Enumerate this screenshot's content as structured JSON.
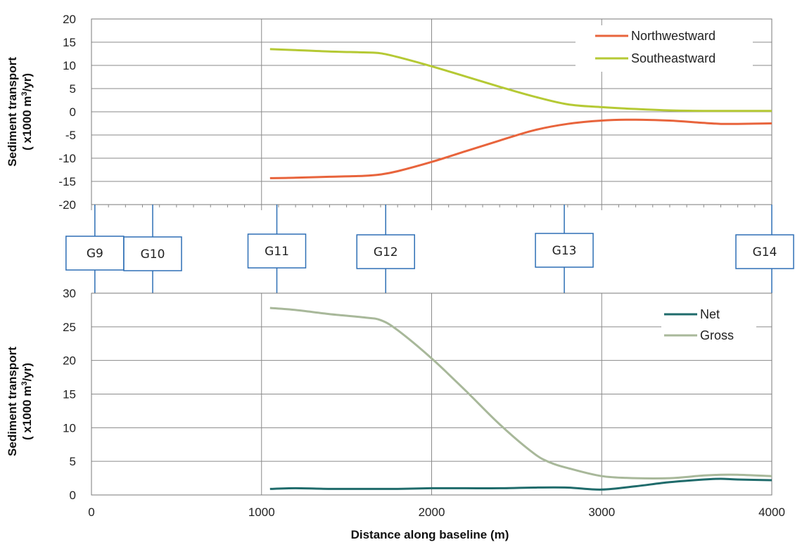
{
  "chart_data": [
    {
      "type": "line",
      "ylabel_line1": "Sediment transport",
      "ylabel_line2": "( x1000 m",
      "ylabel_sup": "3",
      "ylabel_end": "/yr)",
      "xlim": [
        0,
        4000
      ],
      "ylim": [
        -20,
        20
      ],
      "yticks": [
        -20,
        -15,
        -10,
        -5,
        0,
        5,
        10,
        15,
        20
      ],
      "x_gridlines": [
        1000,
        2000,
        3000
      ],
      "grid": true,
      "legend_position": "top-right",
      "series": [
        {
          "name": "Northwestward",
          "color": "#e8643c",
          "x": [
            1050,
            1200,
            1400,
            1600,
            1700,
            1800,
            2000,
            2200,
            2400,
            2600,
            2800,
            3000,
            3200,
            3400,
            3600,
            3700,
            3800,
            4000
          ],
          "y": [
            -14.3,
            -14.2,
            -14.0,
            -13.8,
            -13.5,
            -12.8,
            -10.8,
            -8.5,
            -6.2,
            -4.0,
            -2.6,
            -1.9,
            -1.7,
            -1.9,
            -2.4,
            -2.6,
            -2.6,
            -2.5
          ]
        },
        {
          "name": "Southeastward",
          "color": "#b5c934",
          "x": [
            1050,
            1200,
            1400,
            1600,
            1700,
            1800,
            2000,
            2200,
            2400,
            2600,
            2800,
            3000,
            3200,
            3400,
            3600,
            3800,
            4000
          ],
          "y": [
            13.5,
            13.3,
            13.0,
            12.8,
            12.6,
            11.8,
            9.8,
            7.6,
            5.4,
            3.3,
            1.6,
            1.0,
            0.6,
            0.3,
            0.2,
            0.2,
            0.2
          ]
        }
      ]
    },
    {
      "type": "line",
      "ylabel_line1": "Sediment transport",
      "ylabel_line2": "( x1000 m",
      "ylabel_sup": "3",
      "ylabel_end": "/yr)",
      "xlabel": "Distance along baseline (m)",
      "xlim": [
        0,
        4000
      ],
      "ylim": [
        0,
        30
      ],
      "yticks": [
        0,
        5,
        10,
        15,
        20,
        25,
        30
      ],
      "xticks": [
        0,
        1000,
        2000,
        3000,
        4000
      ],
      "x_gridlines": [
        1000,
        2000,
        3000
      ],
      "grid": true,
      "legend_position": "top-right",
      "series": [
        {
          "name": "Net",
          "color": "#1f6b6b",
          "x": [
            1050,
            1200,
            1400,
            1600,
            1800,
            2000,
            2200,
            2400,
            2600,
            2800,
            3000,
            3200,
            3400,
            3600,
            3700,
            3800,
            4000
          ],
          "y": [
            0.9,
            1.0,
            0.9,
            0.9,
            0.9,
            1.0,
            1.0,
            1.0,
            1.1,
            1.1,
            0.8,
            1.3,
            1.9,
            2.3,
            2.4,
            2.3,
            2.2
          ]
        },
        {
          "name": "Gross",
          "color": "#a8b89a",
          "x": [
            1050,
            1200,
            1400,
            1600,
            1700,
            1800,
            2000,
            2200,
            2400,
            2600,
            2700,
            2800,
            3000,
            3200,
            3400,
            3600,
            3700,
            3800,
            4000
          ],
          "y": [
            27.8,
            27.5,
            26.9,
            26.4,
            26.0,
            24.5,
            20.3,
            15.5,
            10.5,
            6.2,
            4.8,
            4.0,
            2.8,
            2.5,
            2.5,
            2.9,
            3.0,
            3.0,
            2.8
          ]
        }
      ]
    }
  ],
  "groynes": [
    {
      "label": "G9",
      "x": 20
    },
    {
      "label": "G10",
      "x": 360
    },
    {
      "label": "G11",
      "x": 1090
    },
    {
      "label": "G12",
      "x": 1730
    },
    {
      "label": "G13",
      "x": 2780
    },
    {
      "label": "G14",
      "x": 4000
    }
  ]
}
